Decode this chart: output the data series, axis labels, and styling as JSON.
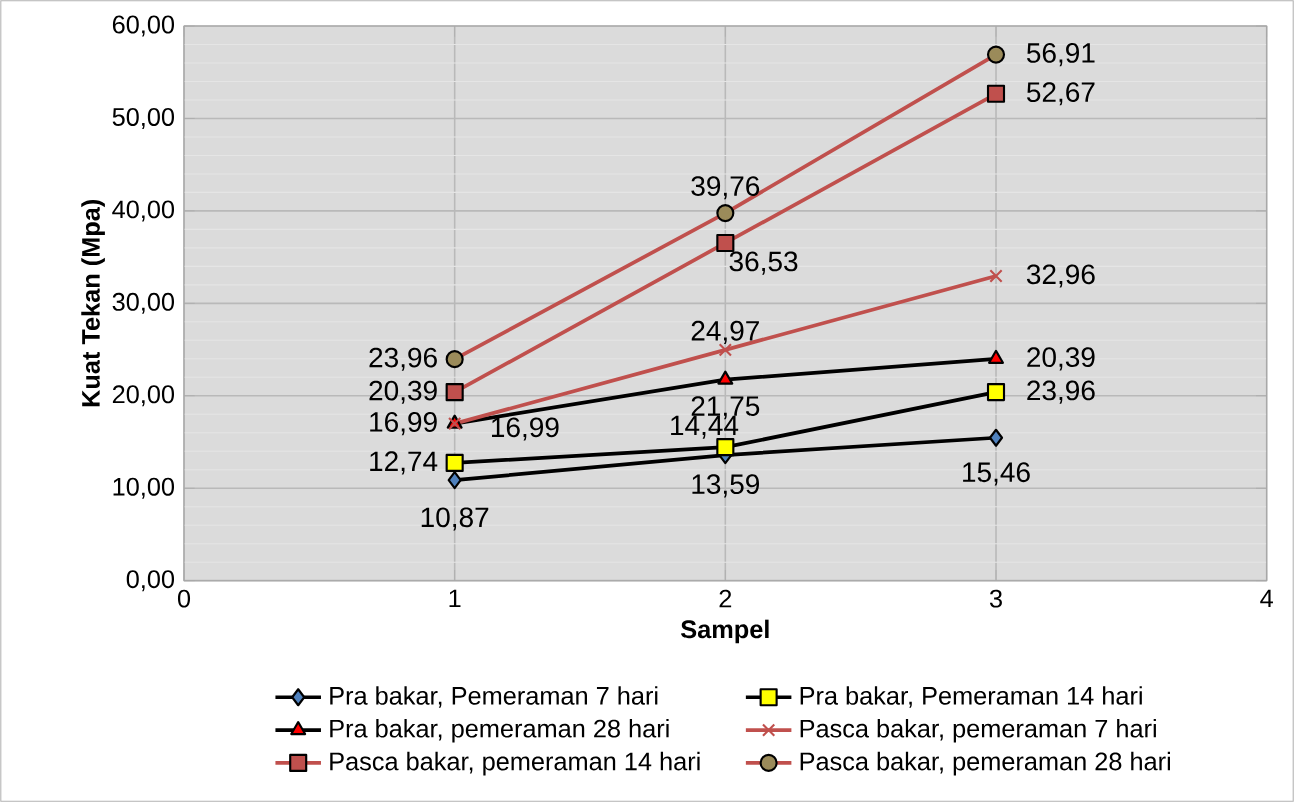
{
  "chart_data": {
    "type": "line",
    "xlabel": "Sampel",
    "ylabel": "Kuat Tekan (Mpa)",
    "x": [
      1,
      2,
      3
    ],
    "xlim": [
      0,
      4
    ],
    "xticks": [
      0,
      1,
      2,
      3,
      4
    ],
    "ylim": [
      0,
      60
    ],
    "yticks": [
      {
        "value": 0,
        "label": "0,00"
      },
      {
        "value": 10,
        "label": "10,00"
      },
      {
        "value": 20,
        "label": "20,00"
      },
      {
        "value": 30,
        "label": "30,00"
      },
      {
        "value": 40,
        "label": "40,00"
      },
      {
        "value": 50,
        "label": "50,00"
      },
      {
        "value": 60,
        "label": "60,00"
      }
    ],
    "grid": true,
    "legend": "bottom",
    "annotations": [
      {
        "text": "20,39",
        "x": 3,
        "y": 24.0
      },
      {
        "text": "23,96",
        "x": 3,
        "y": 20.4
      }
    ],
    "series": [
      {
        "name": "Pra bakar, Pemeraman 7 hari",
        "color": "#000000",
        "marker": "diamond",
        "values": [
          10.87,
          13.59,
          15.46
        ],
        "value_labels": [
          "10,87",
          "13,59",
          "15,46"
        ]
      },
      {
        "name": "Pra bakar, Pemeraman 14 hari",
        "color": "#000000",
        "marker": "square",
        "values": [
          12.74,
          14.44,
          20.4
        ],
        "value_labels": [
          "12,74",
          "14,44",
          null
        ]
      },
      {
        "name": "Pra bakar, pemeraman 28 hari",
        "color": "#000000",
        "marker": "triangle",
        "values": [
          16.99,
          21.75,
          24.0
        ],
        "value_labels": [
          "16,99",
          "21,75",
          null
        ]
      },
      {
        "name": "Pasca bakar, pemeraman 7 hari",
        "color": "#c0504d",
        "marker": "cross",
        "values": [
          16.99,
          24.97,
          32.96
        ],
        "value_labels": [
          "16,99",
          "24,97",
          "32,96"
        ]
      },
      {
        "name": "Pasca bakar, pemeraman 14 hari",
        "color": "#c0504d",
        "marker": "square",
        "values": [
          20.39,
          36.53,
          52.67
        ],
        "value_labels": [
          "20,39",
          "36,53",
          "52,67"
        ]
      },
      {
        "name": "Pasca bakar, pemeraman 28 hari",
        "color": "#c0504d",
        "marker": "circle",
        "values": [
          23.96,
          39.76,
          56.91
        ],
        "value_labels": [
          "23,96",
          "39,76",
          "56,91"
        ]
      }
    ]
  }
}
